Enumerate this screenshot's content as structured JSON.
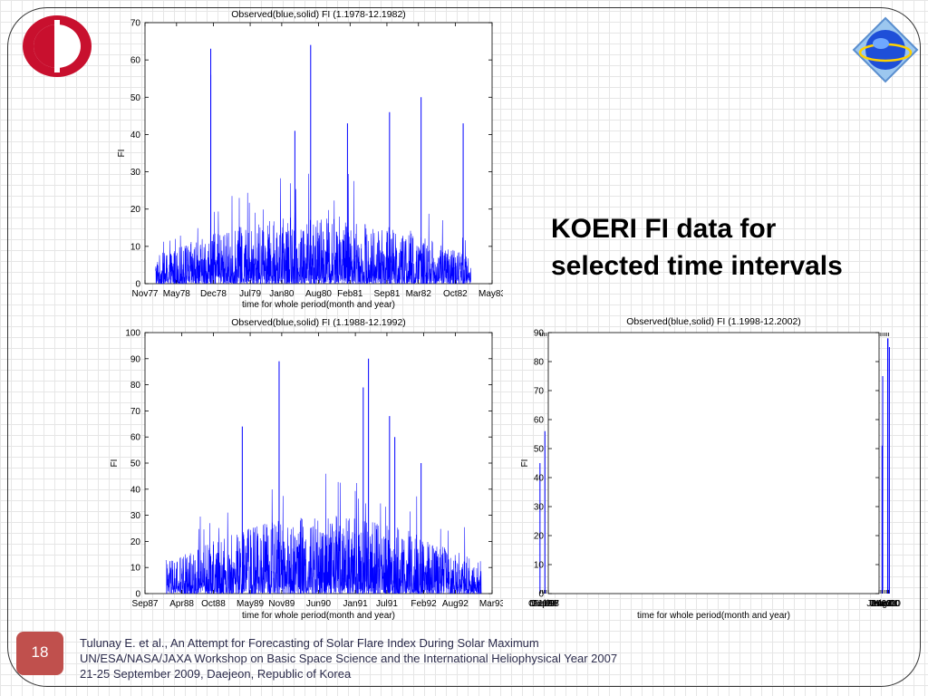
{
  "slide": {
    "headline_line1": "KOERI FI data for",
    "headline_line2": "selected time intervals",
    "page_number": "18",
    "citation": [
      "Tulunay E. et al., An Attempt for Forecasting of Solar Flare Index During Solar Maximum",
      "UN/ESA/NASA/JAXA Workshop on Basic Space Science and the International Heliophysical Year 2007",
      "21-25 September 2009, Daejeon, Republic of Korea"
    ],
    "colors": {
      "series": "#0000ff",
      "badge": "#c0504d",
      "logo_red": "#c8102e",
      "logo_blue": "#1e4fd8"
    },
    "icons": {
      "left_logo": "university-logo-icon",
      "right_logo": "workshop-logo-icon"
    }
  },
  "chart_data": [
    {
      "type": "line",
      "title": "Observed(blue,solid) FI (1.1978-12.1982)",
      "xlabel": "time for whole period(month and year)",
      "ylabel": "FI",
      "ylim": [
        0,
        70
      ],
      "yticks": [
        0,
        10,
        20,
        30,
        40,
        50,
        60,
        70
      ],
      "xtick_labels": [
        "Nov77",
        "May78",
        "Dec78",
        "Jul79",
        "Jan80",
        "Aug80",
        "Feb81",
        "Sep81",
        "Mar82",
        "Oct82",
        "May83"
      ],
      "x_range": [
        "Nov77",
        "May83"
      ],
      "data_span": [
        "Jan78",
        "Dec82"
      ],
      "spikes": [
        {
          "x": "Nov78",
          "y": 63
        },
        {
          "x": "Nov78",
          "y": 56
        },
        {
          "x": "Jun80",
          "y": 64
        },
        {
          "x": "Sep81",
          "y": 46
        },
        {
          "x": "Mar82",
          "y": 50
        },
        {
          "x": "Nov82",
          "y": 43
        },
        {
          "x": "Jan81",
          "y": 43
        },
        {
          "x": "Mar80",
          "y": 41
        }
      ],
      "typical_level": [
        2,
        18
      ],
      "series": [
        {
          "values_description": "daily flare index",
          "color": "#0000ff"
        }
      ],
      "grid": false
    },
    {
      "type": "line",
      "title": "Observed(blue,solid) FI (1.1988-12.1992)",
      "xlabel": "time for whole period(month and year)",
      "ylabel": "FI",
      "ylim": [
        0,
        100
      ],
      "yticks": [
        0,
        10,
        20,
        30,
        40,
        50,
        60,
        70,
        80,
        90,
        100
      ],
      "xtick_labels": [
        "Sep87",
        "Apr88",
        "Oct88",
        "May89",
        "Nov89",
        "Jun90",
        "Jan91",
        "Jul91",
        "Feb92",
        "Aug92",
        "Mar93"
      ],
      "x_range": [
        "Sep87",
        "Mar93"
      ],
      "data_span": [
        "Jan88",
        "Dec92"
      ],
      "spikes": [
        {
          "x": "Oct89",
          "y": 89
        },
        {
          "x": "Mar91",
          "y": 90
        },
        {
          "x": "Feb91",
          "y": 79
        },
        {
          "x": "Jul91",
          "y": 68
        },
        {
          "x": "Mar89",
          "y": 64
        },
        {
          "x": "Jan92",
          "y": 50
        },
        {
          "x": "Aug91",
          "y": 60
        }
      ],
      "typical_level": [
        3,
        30
      ],
      "series": [
        {
          "values_description": "daily flare index",
          "color": "#0000ff"
        }
      ],
      "grid": false
    },
    {
      "type": "line",
      "title": "Observed(blue,solid) FI (1.1998-12.2002)",
      "xlabel": "time for whole period(month and year)",
      "ylabel": "FI",
      "ylim": [
        0,
        90
      ],
      "yticks": [
        0,
        10,
        20,
        30,
        40,
        50,
        60,
        70,
        80,
        90
      ],
      "xtick_labels": [
        "Jul97",
        "Feb98",
        "Sep98",
        "Mar99",
        "Oct99",
        "Apr00",
        "Nov00",
        "May01",
        "Dec01",
        "Jul02",
        "Jan03"
      ],
      "x_range": [
        "Jul97",
        "Jan03"
      ],
      "data_span": [
        "Jan98",
        "Dec02"
      ],
      "spikes": [
        {
          "x": "Jun00",
          "y": 88
        },
        {
          "x": "Jul00",
          "y": 88
        },
        {
          "x": "Jan00",
          "y": 85
        },
        {
          "x": "Dec01",
          "y": 75
        },
        {
          "x": "Jul00",
          "y": 79
        },
        {
          "x": "Jun98",
          "y": 56
        },
        {
          "x": "Feb02",
          "y": 51
        },
        {
          "x": "Nov99",
          "y": 45
        }
      ],
      "typical_level": [
        0,
        18
      ],
      "series": [
        {
          "values_description": "daily flare index",
          "color": "#0000ff"
        }
      ],
      "grid": false
    }
  ]
}
